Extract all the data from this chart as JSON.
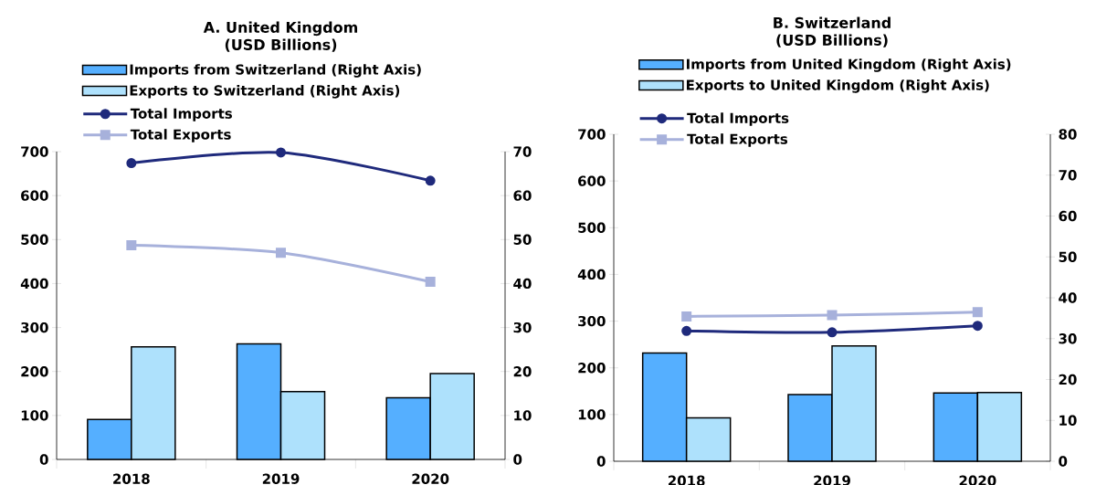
{
  "chart_data": [
    {
      "type": "bar",
      "title": "A. United Kingdom",
      "subtitle": "(USD Billions)",
      "categories": [
        "2018",
        "2019",
        "2020"
      ],
      "legend": "top left",
      "ylim": [
        0,
        700
      ],
      "yticks": [
        0,
        100,
        200,
        300,
        400,
        500,
        600,
        700
      ],
      "y2lim": [
        0,
        70
      ],
      "y2ticks": [
        0,
        10,
        20,
        30,
        40,
        50,
        60,
        70
      ],
      "series": [
        {
          "name": "Imports from Switzerland (Right Axis)",
          "axis": "y2",
          "color": "#55afff",
          "values": [
            9.1,
            26.3,
            14.0
          ]
        },
        {
          "name": "Exports to Switzerland (Right Axis)",
          "axis": "y2",
          "color": "#aee1fc",
          "values": [
            25.6,
            15.4,
            19.5
          ]
        },
        {
          "name": "Total Imports",
          "type": "line",
          "color": "#1f2a7c",
          "marker": "circle",
          "values": [
            674,
            698,
            634
          ]
        },
        {
          "name": "Total Exports",
          "type": "line",
          "color": "#a7b1db",
          "marker": "square",
          "values": [
            487,
            470,
            404
          ]
        }
      ]
    },
    {
      "type": "bar",
      "title": "B. Switzerland",
      "subtitle": "(USD Billions)",
      "categories": [
        "2018",
        "2019",
        "2020"
      ],
      "legend": "top left",
      "ylim": [
        0,
        700
      ],
      "yticks": [
        0,
        100,
        200,
        300,
        400,
        500,
        600,
        700
      ],
      "y2lim": [
        0,
        80
      ],
      "y2ticks": [
        0,
        10,
        20,
        30,
        40,
        50,
        60,
        70,
        80
      ],
      "series": [
        {
          "name": "Imports from United Kingdom (Right Axis)",
          "axis": "y2",
          "color": "#55afff",
          "values": [
            26.5,
            16.3,
            16.7
          ]
        },
        {
          "name": "Exports to United Kingdom (Right Axis)",
          "axis": "y2",
          "color": "#aee1fc",
          "values": [
            10.6,
            28.2,
            16.8
          ]
        },
        {
          "name": "Total Imports",
          "type": "line",
          "color": "#1f2a7c",
          "marker": "circle",
          "values": [
            279,
            276,
            290
          ]
        },
        {
          "name": "Total Exports",
          "type": "line",
          "color": "#a7b1db",
          "marker": "square",
          "values": [
            310,
            313,
            319
          ]
        }
      ]
    }
  ]
}
